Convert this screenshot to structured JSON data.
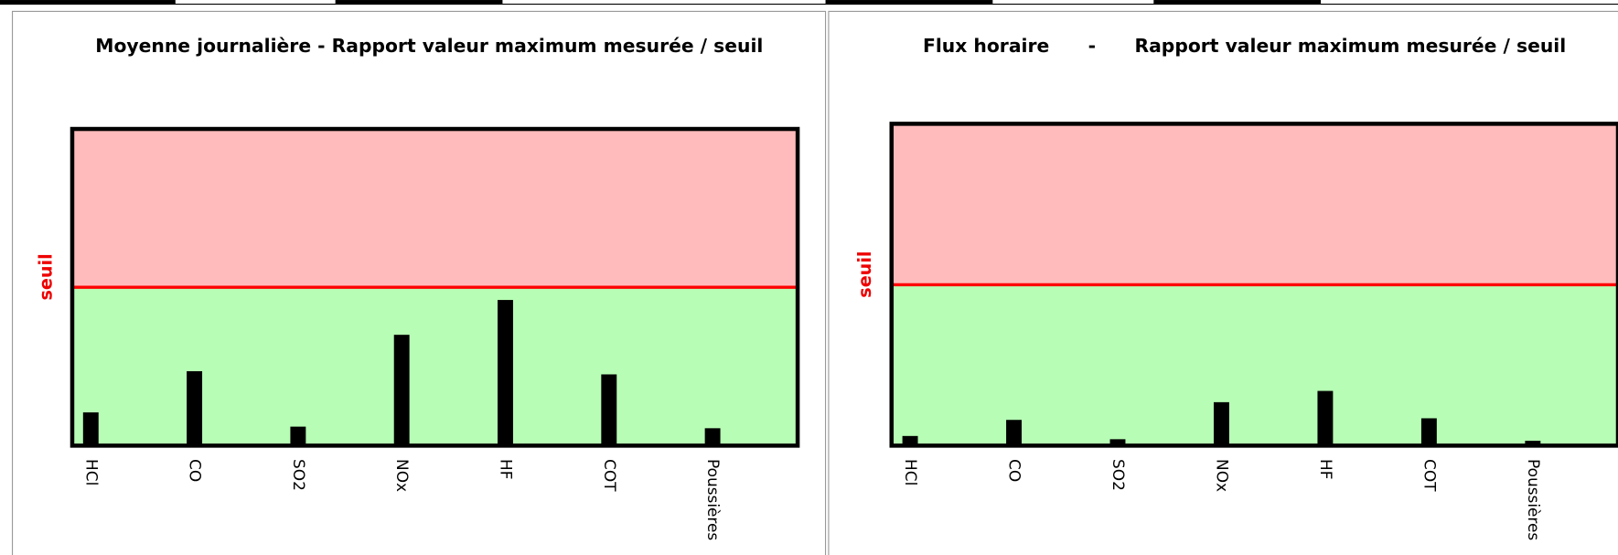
{
  "chart_data": [
    {
      "type": "bar",
      "title": "Moyenne journalière - Rapport valeur maximum mesurée / seuil",
      "categories": [
        "HCl",
        "CO",
        "SO2",
        "NOx",
        "HF",
        "COT",
        "Poussières"
      ],
      "values": [
        0.21,
        0.47,
        0.12,
        0.7,
        0.92,
        0.45,
        0.11
      ],
      "color": "#000000",
      "ylim": [
        0,
        2
      ],
      "threshold": {
        "value": 1,
        "label": "seuil"
      }
    },
    {
      "type": "bar",
      "title": "Flux horaire      -      Rapport valeur maximum mesurée / seuil",
      "categories": [
        "HCl",
        "CO",
        "SO2",
        "NOx",
        "HF",
        "COT",
        "Poussières"
      ],
      "values": [
        0.06,
        0.16,
        0.04,
        0.27,
        0.34,
        0.17,
        0.03
      ],
      "color": "#000000",
      "ylim": [
        0,
        2
      ],
      "threshold": {
        "value": 1,
        "label": "seuil"
      }
    }
  ]
}
